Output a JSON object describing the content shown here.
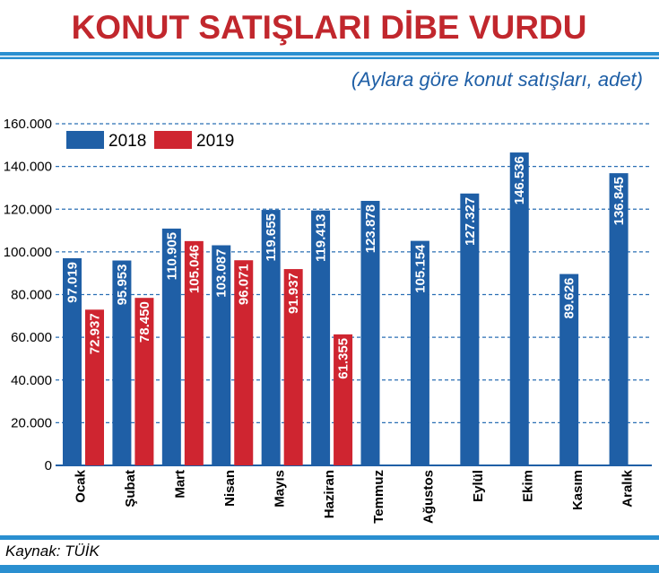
{
  "title": "KONUT SATIŞLARI DİBE VURDU",
  "subtitle": "(Aylara göre konut satışları, adet)",
  "source": "Kaynak: TÜİK",
  "colors": {
    "title": "#c1272d",
    "bar_2018": "#1f5fa6",
    "bar_2019": "#cf2530",
    "band": "#2a8fd0",
    "grid": "#2a6fb4"
  },
  "chart_data": {
    "type": "bar",
    "title": "KONUT SATIŞLARI DİBE VURDU",
    "subtitle": "(Aylara göre konut satışları, adet)",
    "categories": [
      "Ocak",
      "Şubat",
      "Mart",
      "Nisan",
      "Mayıs",
      "Haziran",
      "Temmuz",
      "Ağustos",
      "Eylül",
      "Ekim",
      "Kasım",
      "Aralık"
    ],
    "series": [
      {
        "name": "2018",
        "values": [
          97019,
          95953,
          110905,
          103087,
          119655,
          119413,
          123878,
          105154,
          127327,
          146536,
          89626,
          136845
        ],
        "labels": [
          "97.019",
          "95.953",
          "110.905",
          "103.087",
          "119.655",
          "119.413",
          "123.878",
          "105.154",
          "127.327",
          "146.536",
          "89.626",
          "136.845"
        ]
      },
      {
        "name": "2019",
        "values": [
          72937,
          78450,
          105046,
          96071,
          91937,
          61355,
          null,
          null,
          null,
          null,
          null,
          null
        ],
        "labels": [
          "72.937",
          "78.450",
          "105.046",
          "96.071",
          "91.937",
          "61.355",
          "",
          "",
          "",
          "",
          "",
          ""
        ]
      }
    ],
    "yticks": [
      "0",
      "20.000",
      "40.000",
      "60.000",
      "80.000",
      "100.000",
      "120.000",
      "140.000",
      "160.000"
    ],
    "ylim": [
      0,
      160000
    ],
    "grid": true,
    "legend": "top-left"
  }
}
